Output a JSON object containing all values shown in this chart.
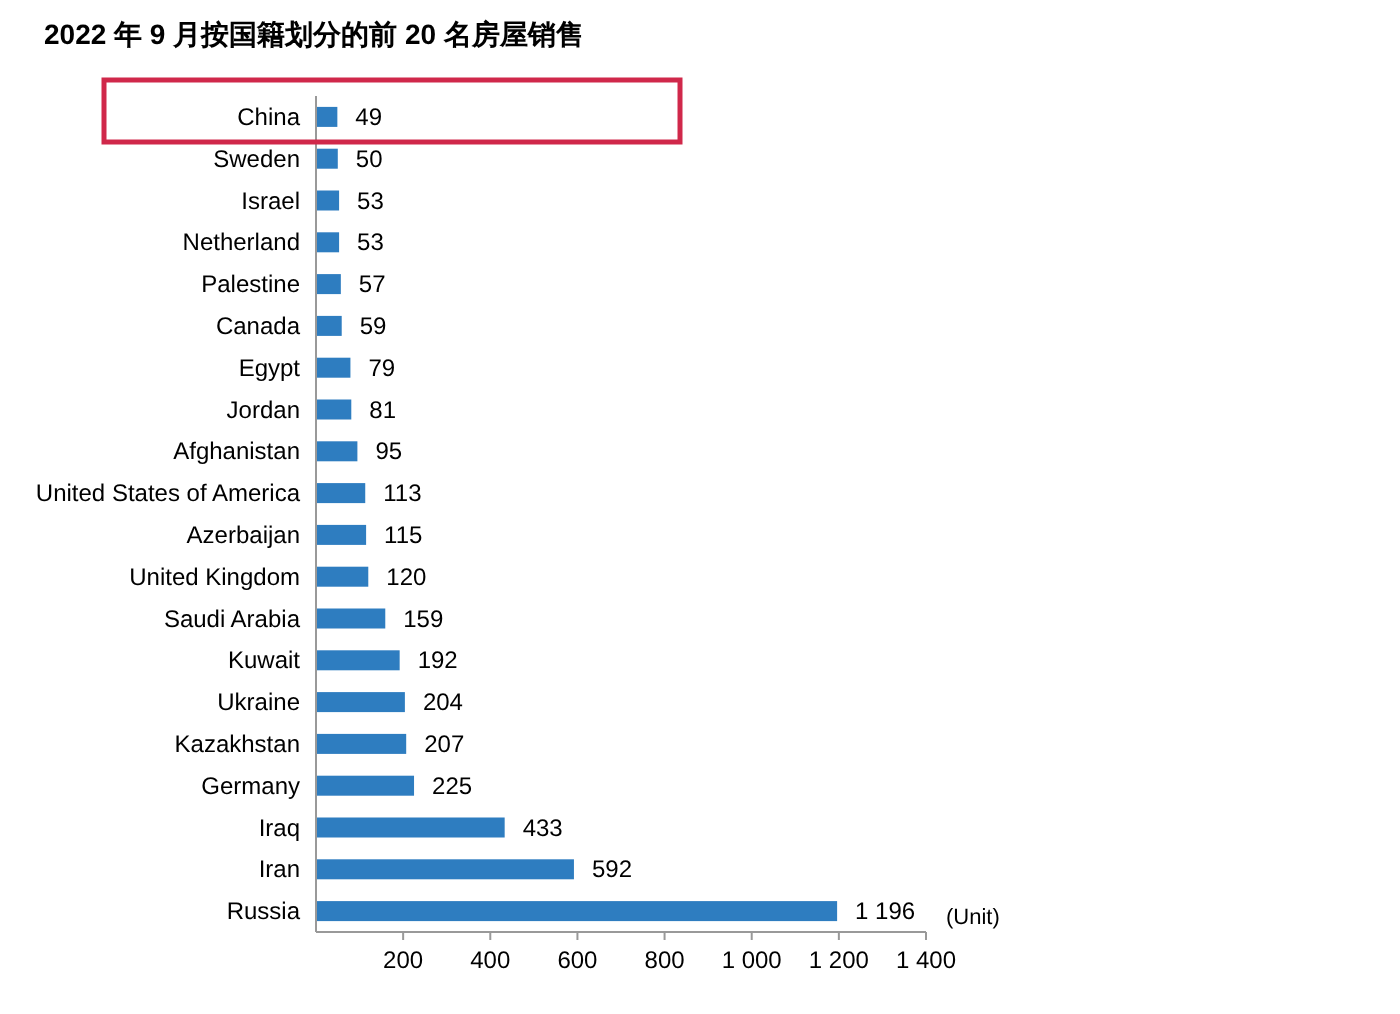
{
  "chart_data": {
    "type": "bar",
    "orientation": "horizontal",
    "title": "2022 年 9 月按国籍划分的前 20 名房屋销售",
    "xlabel": "(Unit)",
    "categories": [
      "China",
      "Sweden",
      "Israel",
      "Netherland",
      "Palestine",
      "Canada",
      "Egypt",
      "Jordan",
      "Afghanistan",
      "United States of America",
      "Azerbaijan",
      "United Kingdom",
      "Saudi Arabia",
      "Kuwait",
      "Ukraine",
      "Kazakhstan",
      "Germany",
      "Iraq",
      "Iran",
      "Russia"
    ],
    "values": [
      49,
      50,
      53,
      53,
      57,
      59,
      79,
      81,
      95,
      113,
      115,
      120,
      159,
      192,
      204,
      207,
      225,
      433,
      592,
      1196
    ],
    "value_labels": [
      "49",
      "50",
      "53",
      "53",
      "57",
      "59",
      "79",
      "81",
      "95",
      "113",
      "115",
      "120",
      "159",
      "192",
      "204",
      "207",
      "225",
      "433",
      "592",
      "1 196"
    ],
    "color": "#2e7dc0",
    "xlim": [
      0,
      1400
    ],
    "xticks": [
      200,
      400,
      600,
      800,
      {
        "value": 1000,
        "label": "1 000"
      },
      {
        "value": 1200,
        "label": "1 200"
      },
      {
        "value": 1400,
        "label": "1 400"
      }
    ]
  }
}
